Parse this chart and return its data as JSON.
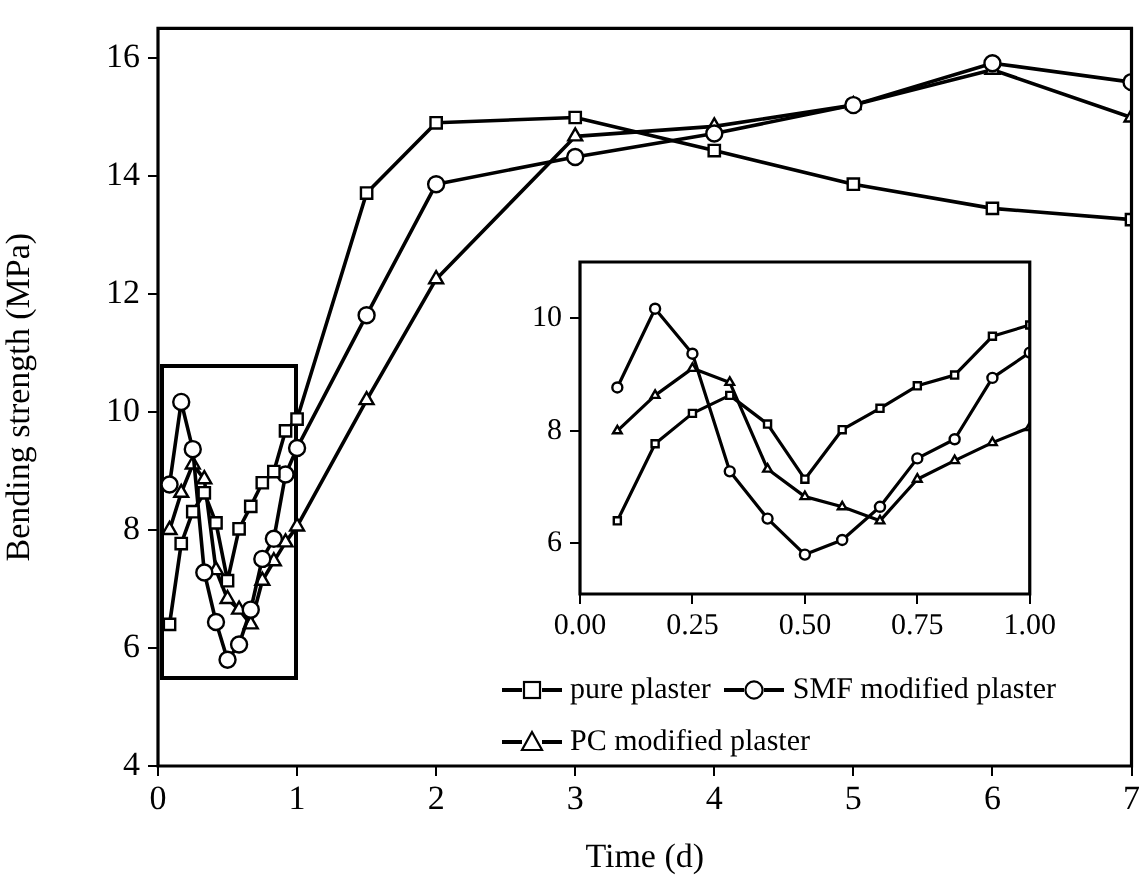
{
  "chart_data": [
    {
      "type": "line",
      "xlabel": "Time (d)",
      "ylabel": "Bending strength (MPa)",
      "x": [
        0.083,
        0.167,
        0.25,
        0.333,
        0.417,
        0.5,
        0.583,
        0.667,
        0.75,
        0.833,
        0.917,
        1,
        1.5,
        2,
        3,
        4,
        5,
        6,
        7
      ],
      "series": [
        {
          "name": "pure plaster",
          "color": "#000000",
          "marker": "square",
          "values": [
            6.4,
            7.77,
            8.31,
            8.63,
            8.12,
            7.14,
            8.02,
            8.4,
            8.8,
            8.99,
            9.68,
            9.88,
            13.71,
            14.9,
            14.99,
            14.43,
            13.86,
            13.45,
            13.26
          ]
        },
        {
          "name": "SMF modified plaster",
          "color": "#000000",
          "marker": "circle",
          "values": [
            8.77,
            10.17,
            9.37,
            7.28,
            6.44,
            5.8,
            6.06,
            6.65,
            7.51,
            7.85,
            8.94,
            9.39,
            11.64,
            13.86,
            14.32,
            14.72,
            15.2,
            15.91,
            15.59
          ]
        },
        {
          "name": "PC modified plaster",
          "color": "#000000",
          "marker": "triangle",
          "values": [
            8.0,
            8.63,
            9.11,
            8.86,
            7.32,
            6.83,
            6.65,
            6.4,
            7.14,
            7.47,
            7.79,
            8.06,
            10.2,
            12.25,
            14.67,
            14.84,
            15.2,
            15.8,
            14.99
          ]
        }
      ],
      "xlim": [
        0,
        7
      ],
      "xticks": [
        0,
        1,
        2,
        3,
        4,
        5,
        6,
        7
      ],
      "ylim": [
        4,
        16.5
      ],
      "yticks": [
        4,
        6,
        8,
        10,
        12,
        14,
        16
      ],
      "legend": "bottom right"
    },
    {
      "type": "line",
      "x": [
        0.083,
        0.167,
        0.25,
        0.333,
        0.417,
        0.5,
        0.583,
        0.667,
        0.75,
        0.833,
        0.917,
        1
      ],
      "series": [
        {
          "color": "#000000",
          "marker": "square",
          "values": [
            6.4,
            7.77,
            8.31,
            8.63,
            8.12,
            7.14,
            8.02,
            8.4,
            8.8,
            8.99,
            9.68,
            9.88
          ]
        },
        {
          "color": "#000000",
          "marker": "circle",
          "values": [
            8.77,
            10.17,
            9.37,
            7.28,
            6.44,
            5.8,
            6.06,
            6.65,
            7.51,
            7.85,
            8.94,
            9.39
          ]
        },
        {
          "color": "#000000",
          "marker": "triangle",
          "values": [
            8.0,
            8.63,
            9.11,
            8.86,
            7.32,
            6.83,
            6.65,
            6.4,
            7.14,
            7.47,
            7.79,
            8.06
          ]
        }
      ],
      "xlim": [
        0,
        1
      ],
      "xticks": [
        {
          "value": 0,
          "label": "0.00"
        },
        {
          "value": 0.25,
          "label": "0.25"
        },
        {
          "value": 0.5,
          "label": "0.50"
        },
        {
          "value": 0.75,
          "label": "0.75"
        },
        {
          "value": 1,
          "label": "1.00"
        }
      ],
      "ylim": [
        5.1,
        11
      ],
      "yticks": [
        6,
        8,
        10
      ]
    }
  ]
}
